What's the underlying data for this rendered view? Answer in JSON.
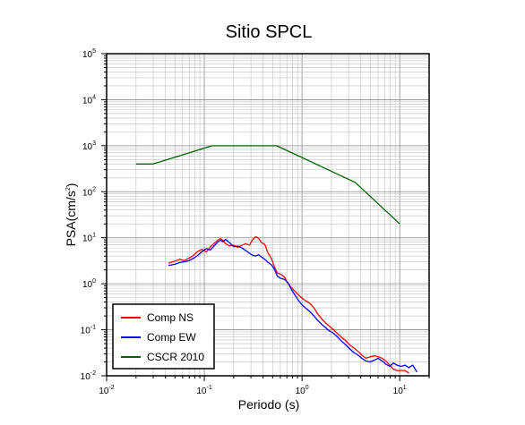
{
  "chart_data": {
    "type": "line",
    "title": "Sitio SPCL",
    "xlabel": "Periodo (s)",
    "ylabel_base": "PSA(cm/s",
    "ylabel_sup": "2",
    "ylabel_close": ")",
    "x_scale": "log",
    "y_scale": "log",
    "xlim": [
      0.01,
      20
    ],
    "ylim": [
      0.01,
      100000
    ],
    "grid": true,
    "legend_position": "bottom-left",
    "x_ticks": [
      {
        "base": "10",
        "exp": "-2",
        "value": 0.01
      },
      {
        "base": "10",
        "exp": "-1",
        "value": 0.1
      },
      {
        "base": "10",
        "exp": "0",
        "value": 1
      },
      {
        "base": "10",
        "exp": "1",
        "value": 10
      }
    ],
    "y_ticks": [
      {
        "base": "10",
        "exp": "-2",
        "value": 0.01
      },
      {
        "base": "10",
        "exp": "-1",
        "value": 0.1
      },
      {
        "base": "10",
        "exp": "0",
        "value": 1
      },
      {
        "base": "10",
        "exp": "1",
        "value": 10
      },
      {
        "base": "10",
        "exp": "2",
        "value": 100
      },
      {
        "base": "10",
        "exp": "3",
        "value": 1000
      },
      {
        "base": "10",
        "exp": "4",
        "value": 10000
      },
      {
        "base": "10",
        "exp": "5",
        "value": 100000
      }
    ],
    "series": [
      {
        "name": "Comp NS",
        "color": "#ff0000",
        "points": [
          [
            0.043,
            2.8
          ],
          [
            0.05,
            3.1
          ],
          [
            0.056,
            3.4
          ],
          [
            0.062,
            3.2
          ],
          [
            0.07,
            3.6
          ],
          [
            0.078,
            4.2
          ],
          [
            0.085,
            5.0
          ],
          [
            0.095,
            5.6
          ],
          [
            0.105,
            4.9
          ],
          [
            0.115,
            6.3
          ],
          [
            0.125,
            7.4
          ],
          [
            0.135,
            8.6
          ],
          [
            0.145,
            9.6
          ],
          [
            0.155,
            8.8
          ],
          [
            0.165,
            7.4
          ],
          [
            0.18,
            6.7
          ],
          [
            0.2,
            6.9
          ],
          [
            0.22,
            6.2
          ],
          [
            0.24,
            6.8
          ],
          [
            0.265,
            7.4
          ],
          [
            0.29,
            6.9
          ],
          [
            0.31,
            8.9
          ],
          [
            0.335,
            10.6
          ],
          [
            0.36,
            9.7
          ],
          [
            0.385,
            7.8
          ],
          [
            0.415,
            7.2
          ],
          [
            0.45,
            4.6
          ],
          [
            0.485,
            3.6
          ],
          [
            0.52,
            2.4
          ],
          [
            0.56,
            1.7
          ],
          [
            0.61,
            1.6
          ],
          [
            0.66,
            1.4
          ],
          [
            0.72,
            1.0
          ],
          [
            0.78,
            0.82
          ],
          [
            0.85,
            0.68
          ],
          [
            0.93,
            0.56
          ],
          [
            1.0,
            0.49
          ],
          [
            1.1,
            0.42
          ],
          [
            1.2,
            0.38
          ],
          [
            1.32,
            0.3
          ],
          [
            1.45,
            0.22
          ],
          [
            1.6,
            0.17
          ],
          [
            1.75,
            0.14
          ],
          [
            1.9,
            0.12
          ],
          [
            2.1,
            0.1
          ],
          [
            2.3,
            0.083
          ],
          [
            2.55,
            0.068
          ],
          [
            2.8,
            0.058
          ],
          [
            3.1,
            0.046
          ],
          [
            3.4,
            0.04
          ],
          [
            3.75,
            0.034
          ],
          [
            4.1,
            0.028
          ],
          [
            4.5,
            0.024
          ],
          [
            5.0,
            0.026
          ],
          [
            5.5,
            0.027
          ],
          [
            6.0,
            0.026
          ],
          [
            6.6,
            0.024
          ],
          [
            7.2,
            0.021
          ],
          [
            7.9,
            0.017
          ],
          [
            8.6,
            0.014
          ],
          [
            9.4,
            0.013
          ],
          [
            10.3,
            0.013
          ],
          [
            11.3,
            0.013
          ],
          [
            12.4,
            0.0115
          ]
        ]
      },
      {
        "name": "Comp EW",
        "color": "#0000ff",
        "points": [
          [
            0.043,
            2.5
          ],
          [
            0.05,
            2.65
          ],
          [
            0.056,
            2.9
          ],
          [
            0.062,
            3.0
          ],
          [
            0.07,
            3.2
          ],
          [
            0.078,
            3.6
          ],
          [
            0.085,
            4.1
          ],
          [
            0.095,
            5.0
          ],
          [
            0.105,
            5.8
          ],
          [
            0.115,
            5.4
          ],
          [
            0.125,
            6.5
          ],
          [
            0.135,
            7.8
          ],
          [
            0.145,
            8.9
          ],
          [
            0.155,
            8.2
          ],
          [
            0.165,
            9.2
          ],
          [
            0.18,
            7.9
          ],
          [
            0.2,
            6.4
          ],
          [
            0.22,
            6.6
          ],
          [
            0.24,
            6.1
          ],
          [
            0.265,
            5.3
          ],
          [
            0.29,
            4.6
          ],
          [
            0.31,
            4.2
          ],
          [
            0.335,
            4.0
          ],
          [
            0.36,
            4.3
          ],
          [
            0.385,
            3.8
          ],
          [
            0.415,
            3.4
          ],
          [
            0.45,
            2.9
          ],
          [
            0.485,
            2.6
          ],
          [
            0.52,
            2.1
          ],
          [
            0.56,
            1.45
          ],
          [
            0.61,
            1.3
          ],
          [
            0.66,
            1.25
          ],
          [
            0.72,
            1.05
          ],
          [
            0.78,
            0.75
          ],
          [
            0.85,
            0.56
          ],
          [
            0.93,
            0.42
          ],
          [
            1.0,
            0.35
          ],
          [
            1.1,
            0.29
          ],
          [
            1.2,
            0.25
          ],
          [
            1.32,
            0.2
          ],
          [
            1.45,
            0.16
          ],
          [
            1.6,
            0.13
          ],
          [
            1.75,
            0.11
          ],
          [
            1.9,
            0.095
          ],
          [
            2.1,
            0.084
          ],
          [
            2.3,
            0.07
          ],
          [
            2.55,
            0.056
          ],
          [
            2.8,
            0.047
          ],
          [
            3.1,
            0.038
          ],
          [
            3.4,
            0.032
          ],
          [
            3.75,
            0.028
          ],
          [
            4.1,
            0.024
          ],
          [
            4.5,
            0.021
          ],
          [
            5.0,
            0.02
          ],
          [
            5.5,
            0.022
          ],
          [
            6.0,
            0.024
          ],
          [
            6.6,
            0.021
          ],
          [
            7.2,
            0.018
          ],
          [
            7.9,
            0.016
          ],
          [
            8.6,
            0.019
          ],
          [
            9.4,
            0.017
          ],
          [
            10.3,
            0.016
          ],
          [
            11.3,
            0.017
          ],
          [
            12.4,
            0.015
          ],
          [
            13.6,
            0.017
          ],
          [
            15.0,
            0.012
          ]
        ]
      },
      {
        "name": "CSCR 2010",
        "color": "#006400",
        "points": [
          [
            0.02,
            400
          ],
          [
            0.03,
            400
          ],
          [
            0.12,
            1000
          ],
          [
            0.55,
            1000
          ],
          [
            3.5,
            160
          ],
          [
            10,
            20
          ]
        ]
      }
    ]
  }
}
